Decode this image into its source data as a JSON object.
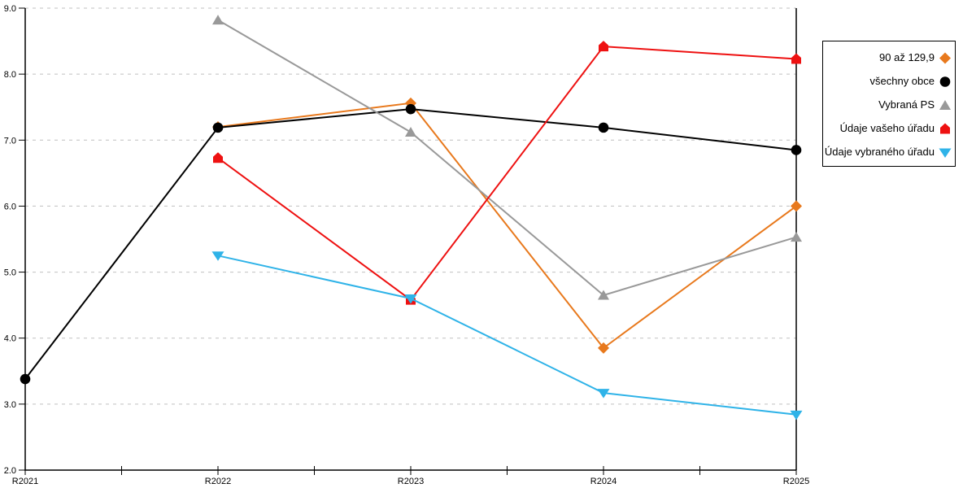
{
  "chart_data": {
    "type": "line",
    "categories": [
      "R2021",
      "R2022",
      "R2023",
      "R2024",
      "R2025"
    ],
    "series": [
      {
        "name": "90 až 129,9",
        "color": "#E8791D",
        "marker": "diamond",
        "values": [
          null,
          7.2,
          7.56,
          3.85,
          6.0
        ]
      },
      {
        "name": "všechny obce",
        "color": "#000000",
        "marker": "circle",
        "values": [
          3.38,
          7.19,
          7.47,
          7.19,
          6.85
        ]
      },
      {
        "name": "Vybraná PS",
        "color": "#999999",
        "marker": "triangle-up",
        "values": [
          null,
          8.82,
          7.12,
          4.65,
          5.53
        ]
      },
      {
        "name": "Údaje vašeho úřadu",
        "color": "#EE1111",
        "marker": "pentagon",
        "values": [
          null,
          6.73,
          4.58,
          8.42,
          8.23
        ]
      },
      {
        "name": "Údaje vybraného úřadu",
        "color": "#2FB3E8",
        "marker": "triangle-down",
        "values": [
          null,
          5.25,
          4.6,
          3.17,
          2.84
        ]
      }
    ],
    "title": "",
    "xlabel": "",
    "ylabel": "",
    "ylim": [
      2.0,
      9.0
    ],
    "y_step": 1.0,
    "y_tick_labels": [
      "2.0",
      "3.0",
      "4.0",
      "5.0",
      "6.0",
      "7.0",
      "8.0",
      "9.0"
    ],
    "grid": "horizontal-dashed",
    "grid_color": "#C0C0C0",
    "axis_color": "#000000",
    "legend_position": "right"
  }
}
